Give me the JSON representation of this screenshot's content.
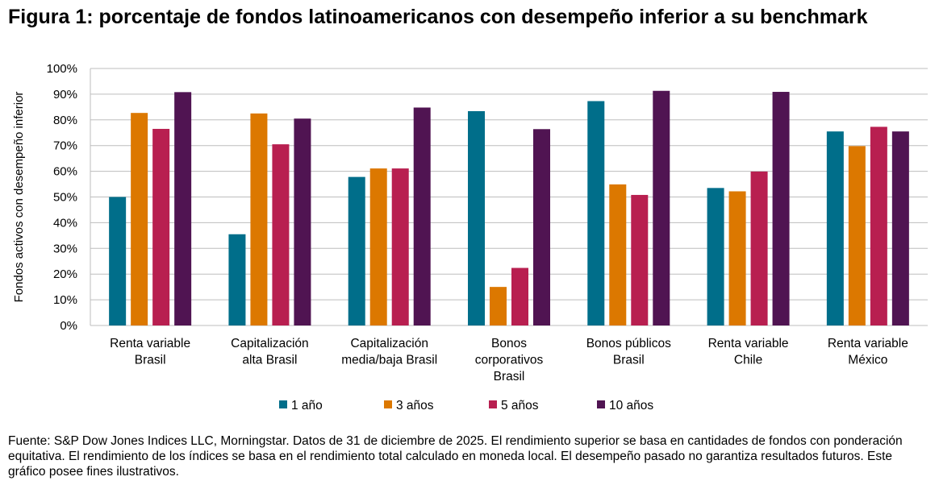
{
  "title": "Figura 1: porcentaje de fondos latinoamericanos con desempeño inferior a su benchmark",
  "source": "Fuente: S&P Dow Jones Indices LLC, Morningstar. Datos de 31 de diciembre de 2025. El rendimiento superior se basa en cantidades de fondos con ponderación equitativa. El rendimiento de los índices se basa en el rendimiento total calculado en moneda local. El desempeño pasado no garantiza resultados futuros. Este gráfico posee fines ilustrativos.",
  "chart_data": {
    "type": "bar",
    "ylabel": "Fondos activos con desempeño inferior",
    "ylim": [
      0,
      100
    ],
    "yticks": [
      "0%",
      "10%",
      "20%",
      "30%",
      "40%",
      "50%",
      "60%",
      "70%",
      "80%",
      "90%",
      "100%"
    ],
    "grid": true,
    "legend_placement": "bottom",
    "categories": [
      [
        "Renta variable",
        "Brasil"
      ],
      [
        "Capitalización",
        "alta Brasil"
      ],
      [
        "Capitalización",
        "media/baja Brasil"
      ],
      [
        "Bonos",
        "corporativos",
        "Brasil"
      ],
      [
        "Bonos públicos",
        "Brasil"
      ],
      [
        "Renta variable",
        "Chile"
      ],
      [
        "Renta variable",
        "México"
      ]
    ],
    "series": [
      {
        "name": "1 año",
        "color": "#006E8A",
        "values": [
          50.0,
          35.5,
          57.8,
          83.4,
          87.3,
          53.5,
          75.5
        ]
      },
      {
        "name": "3 años",
        "color": "#DC7800",
        "values": [
          82.7,
          82.5,
          61.1,
          15.0,
          54.9,
          52.2,
          69.8
        ]
      },
      {
        "name": "5 años",
        "color": "#B81F50",
        "values": [
          76.5,
          70.5,
          61.1,
          22.4,
          50.8,
          59.9,
          77.3
        ]
      },
      {
        "name": "10 años",
        "color": "#501452",
        "values": [
          90.8,
          80.5,
          84.8,
          76.4,
          91.3,
          90.9,
          75.5
        ]
      }
    ]
  }
}
